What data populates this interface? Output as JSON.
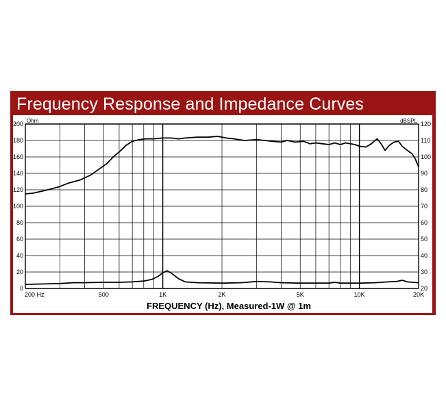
{
  "title": "Frequency Response and Impedance Curves",
  "chart_data": {
    "type": "line",
    "xlabel": "FREQUENCY (Hz), Measured-1W @ 1m",
    "x_scale": "log",
    "xlim": [
      200,
      20000
    ],
    "x_tick_labels": [
      {
        "value": 200,
        "label": "200 Hz"
      },
      {
        "value": 500,
        "label": "500"
      },
      {
        "value": 1000,
        "label": "1K"
      },
      {
        "value": 2000,
        "label": "2K"
      },
      {
        "value": 5000,
        "label": "5K"
      },
      {
        "value": 10000,
        "label": "10K"
      },
      {
        "value": 20000,
        "label": "20K"
      }
    ],
    "y_left": {
      "unit": "Ohm",
      "lim": [
        0,
        200
      ],
      "ticks": [
        0,
        20,
        40,
        60,
        80,
        100,
        120,
        140,
        160,
        180,
        200
      ]
    },
    "y_right": {
      "unit": "dBSPL",
      "lim": [
        20,
        120
      ],
      "ticks": [
        20,
        30,
        40,
        50,
        60,
        70,
        80,
        90,
        100,
        110,
        120
      ]
    },
    "grid": true,
    "series": [
      {
        "axis": "right",
        "points": [
          [
            200,
            77.5
          ],
          [
            220,
            78
          ],
          [
            250,
            79.5
          ],
          [
            280,
            81
          ],
          [
            300,
            82
          ],
          [
            330,
            84
          ],
          [
            380,
            86
          ],
          [
            430,
            89
          ],
          [
            480,
            93
          ],
          [
            520,
            96
          ],
          [
            560,
            100
          ],
          [
            600,
            103
          ],
          [
            650,
            107
          ],
          [
            700,
            109.5
          ],
          [
            760,
            110.5
          ],
          [
            820,
            111
          ],
          [
            900,
            111
          ],
          [
            1000,
            111.5
          ],
          [
            1100,
            111.5
          ],
          [
            1200,
            111
          ],
          [
            1300,
            111.5
          ],
          [
            1500,
            112
          ],
          [
            1700,
            112
          ],
          [
            1900,
            112.5
          ],
          [
            2100,
            111.5
          ],
          [
            2300,
            111
          ],
          [
            2600,
            110
          ],
          [
            3000,
            110.5
          ],
          [
            3300,
            110
          ],
          [
            3600,
            109.5
          ],
          [
            4000,
            109
          ],
          [
            4300,
            110
          ],
          [
            4700,
            109
          ],
          [
            5200,
            109.5
          ],
          [
            5600,
            108
          ],
          [
            6000,
            108.5
          ],
          [
            6500,
            108
          ],
          [
            7000,
            107.5
          ],
          [
            7500,
            108.5
          ],
          [
            8000,
            107.5
          ],
          [
            8500,
            108.5
          ],
          [
            9000,
            108
          ],
          [
            9500,
            107.5
          ],
          [
            10000,
            106.5
          ],
          [
            10800,
            106
          ],
          [
            11500,
            108
          ],
          [
            12300,
            111
          ],
          [
            12900,
            108
          ],
          [
            13500,
            104
          ],
          [
            14200,
            107
          ],
          [
            15000,
            109
          ],
          [
            15800,
            109.5
          ],
          [
            16500,
            106.5
          ],
          [
            17500,
            104
          ],
          [
            18500,
            102
          ],
          [
            19200,
            99
          ],
          [
            20000,
            94
          ]
        ]
      },
      {
        "axis": "left",
        "points": [
          [
            200,
            5
          ],
          [
            250,
            5.5
          ],
          [
            300,
            6
          ],
          [
            350,
            7
          ],
          [
            400,
            7
          ],
          [
            500,
            7.5
          ],
          [
            600,
            7.5
          ],
          [
            700,
            8
          ],
          [
            800,
            9
          ],
          [
            880,
            11
          ],
          [
            950,
            15
          ],
          [
            1000,
            19
          ],
          [
            1050,
            21.5
          ],
          [
            1100,
            19
          ],
          [
            1200,
            12
          ],
          [
            1300,
            8
          ],
          [
            1500,
            7
          ],
          [
            2000,
            6.5
          ],
          [
            2500,
            7
          ],
          [
            3000,
            8.5
          ],
          [
            3500,
            8
          ],
          [
            4000,
            7
          ],
          [
            5000,
            6.5
          ],
          [
            6000,
            6.5
          ],
          [
            7000,
            6.5
          ],
          [
            7500,
            7.5
          ],
          [
            8000,
            6.5
          ],
          [
            9000,
            6.5
          ],
          [
            10000,
            6.5
          ],
          [
            12000,
            7
          ],
          [
            14000,
            8
          ],
          [
            15500,
            8.5
          ],
          [
            16500,
            10
          ],
          [
            17500,
            8
          ],
          [
            20000,
            7
          ]
        ]
      }
    ]
  }
}
